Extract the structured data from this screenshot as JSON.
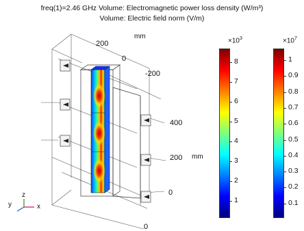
{
  "header": {
    "line1": "freq(1)=2.46 GHz   Volume: Electromagnetic power loss density (W/m³)",
    "line2": "Volume: Electric field norm (V/m)"
  },
  "axes": {
    "unit": "mm",
    "labels": [
      "200",
      "0",
      "-200",
      "400",
      "200",
      "0",
      "0"
    ]
  },
  "triad": {
    "y": "y",
    "z": "z",
    "x": "x"
  },
  "colorbars": [
    {
      "multiplier": "×10",
      "exp": "3",
      "ticks": [
        "8",
        "7",
        "6",
        "5",
        "4",
        "3",
        "2",
        "1"
      ]
    },
    {
      "multiplier": "×10",
      "exp": "7",
      "ticks": [
        "1",
        "0.9",
        "0.8",
        "0.7",
        "0.6",
        "0.5",
        "0.4",
        "0.3",
        "0.2",
        "0.1"
      ]
    }
  ],
  "colors": {
    "jet": [
      "#00007f",
      "#0000ff",
      "#007fff",
      "#00ffff",
      "#7fff7f",
      "#ffff00",
      "#ff7f00",
      "#ff0000",
      "#7f0000"
    ]
  }
}
